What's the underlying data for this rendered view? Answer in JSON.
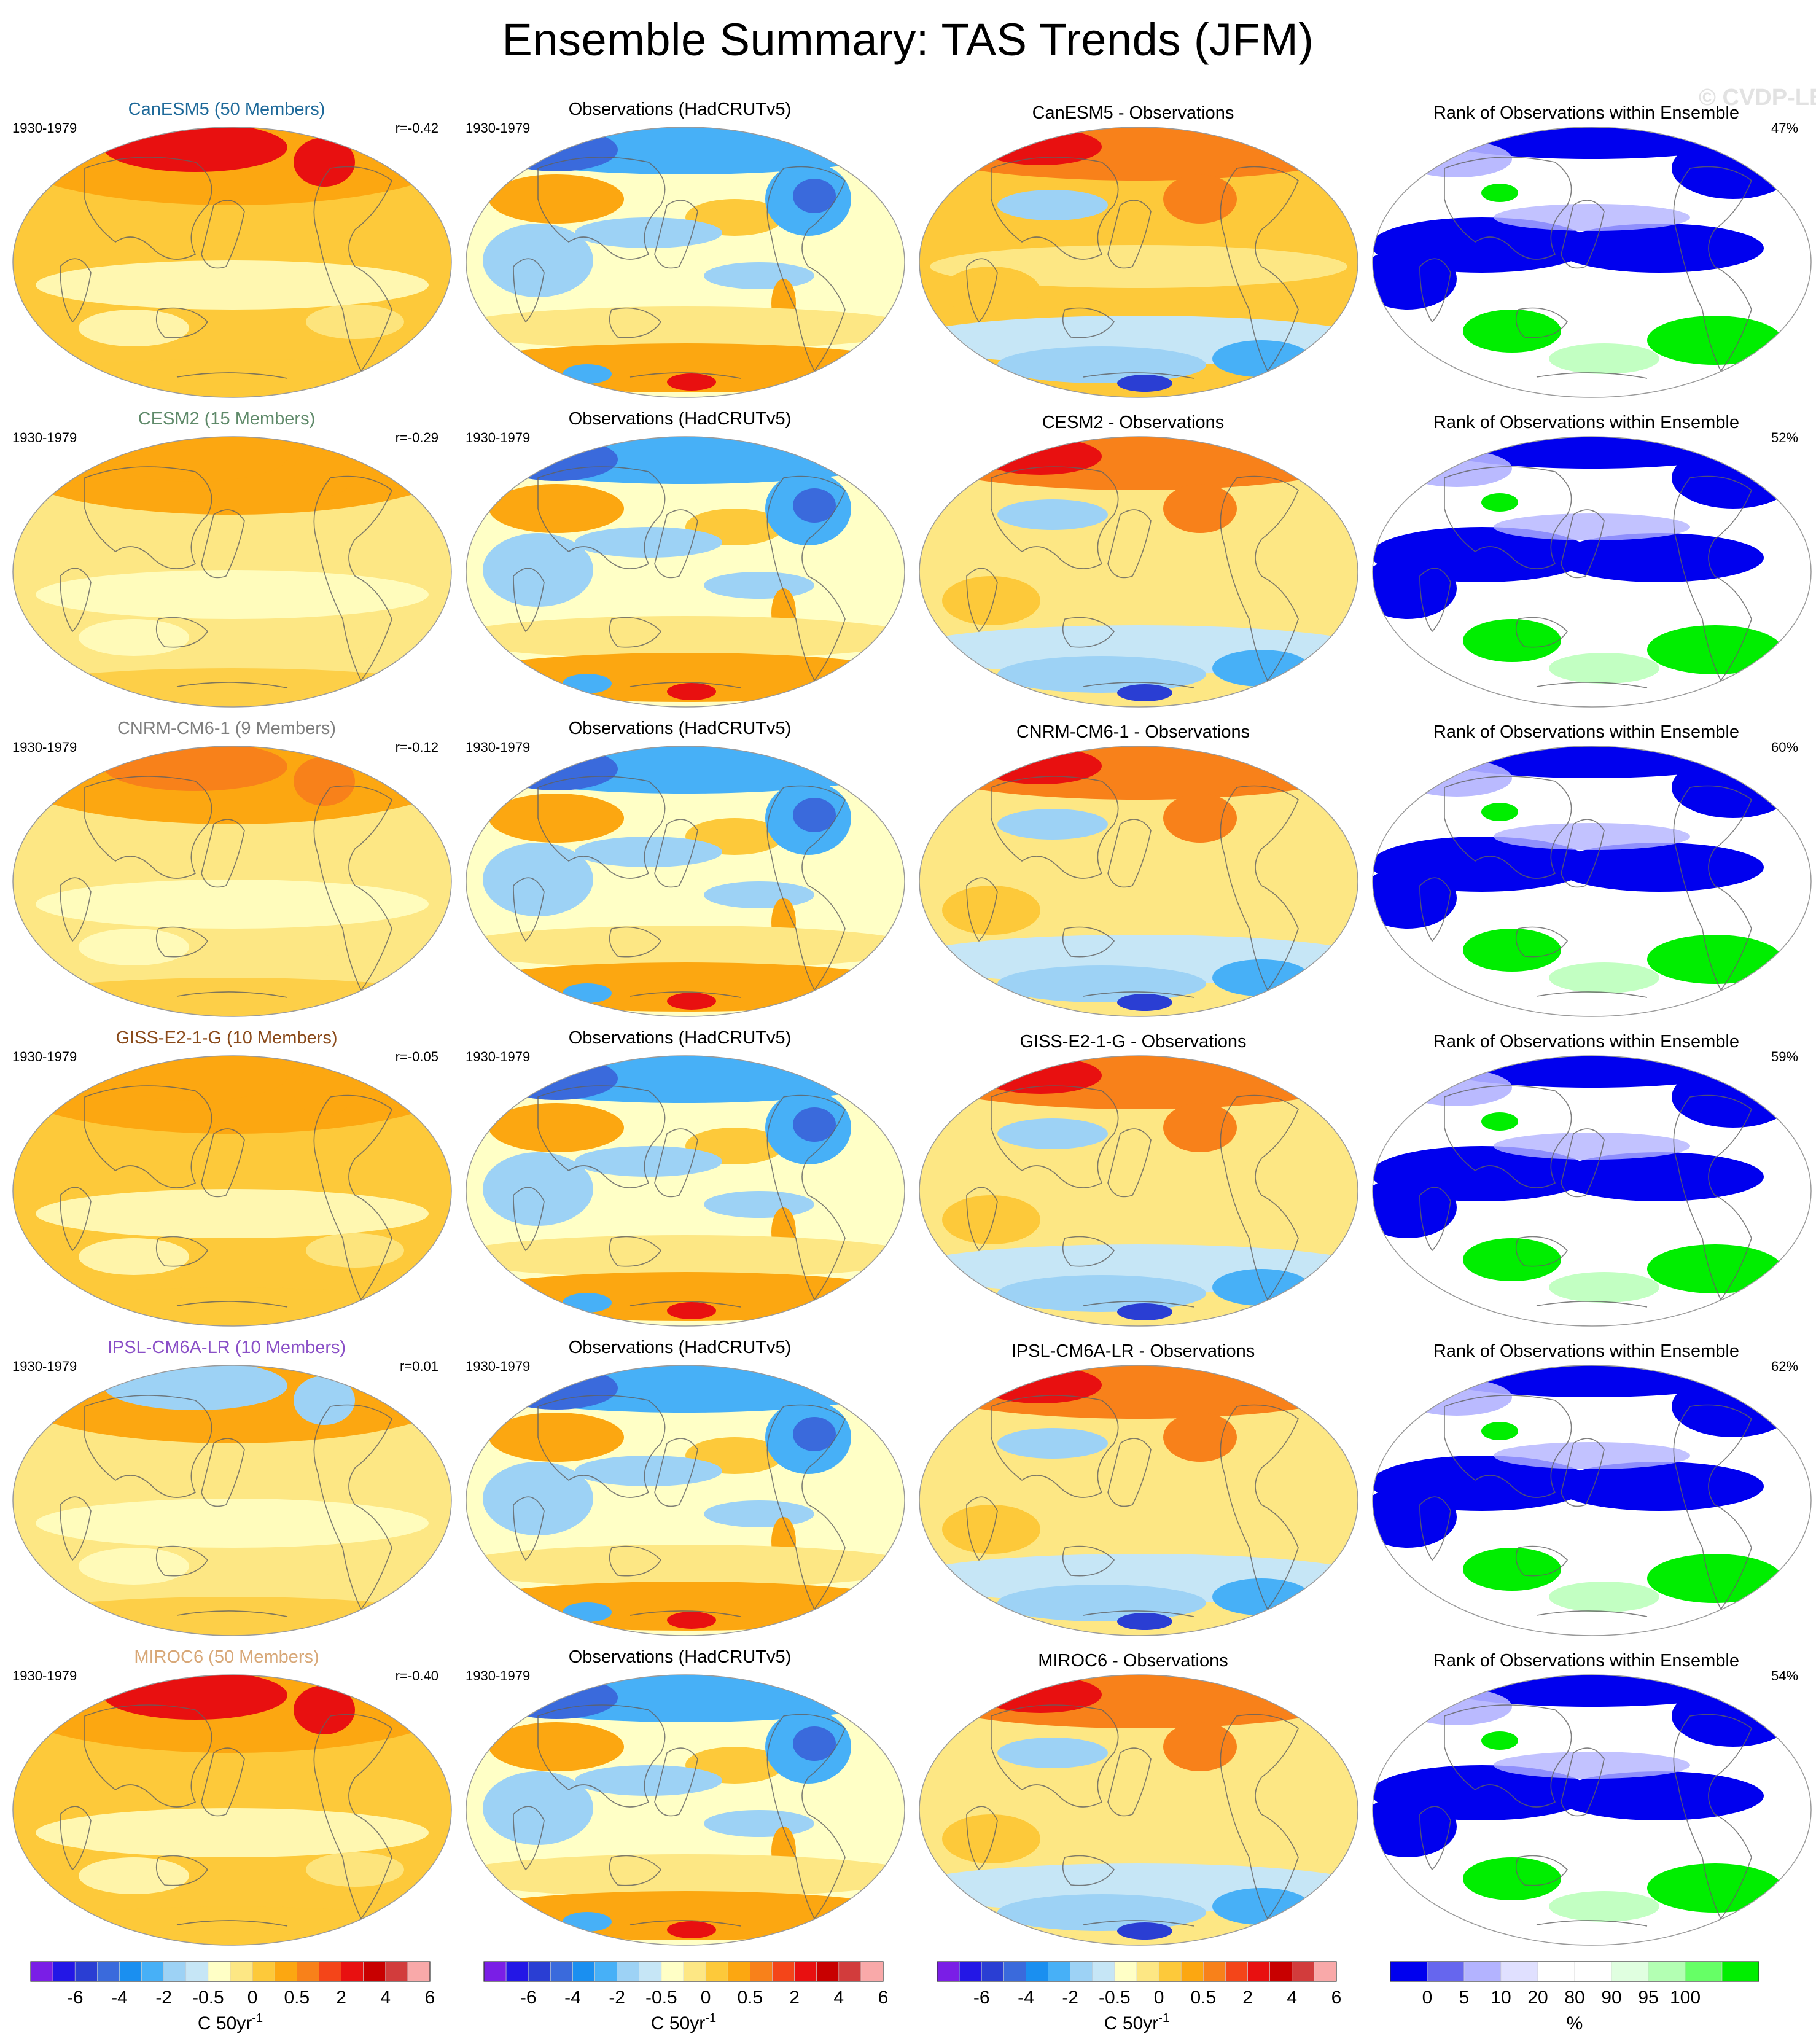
{
  "title": "Ensemble Summary: TAS Trends (JFM)",
  "copyright": "© CVDP-LE",
  "colors": {
    "diverging": [
      "#7a1ee6",
      "#2317e6",
      "#2a3ed3",
      "#3a6adc",
      "#1a8ff0",
      "#47b0f7",
      "#9dd2f5",
      "#c6e6f6",
      "#ffffc6",
      "#fde784",
      "#fdc93a",
      "#fca711",
      "#f8811a",
      "#f44519",
      "#e81010",
      "#c80000",
      "#d23c3c",
      "#f9a9a9"
    ],
    "rank": [
      "#0000ee",
      "#6666ee",
      "#b3b3ff",
      "#e0e0ff",
      "#ffffff",
      "#ffffff",
      "#e0ffe0",
      "#b3ffb3",
      "#66ff66",
      "#00ee00"
    ]
  },
  "rows": [
    {
      "model": {
        "title": "CanESM5 (50 Members)",
        "title_color": "#1f6a9a",
        "period": "1930-1979",
        "stat": "r=-0.42",
        "tint": "#fdc93a",
        "arctic": "#e81010"
      },
      "obs": {
        "title": "Observations (HadCRUTv5)",
        "period": "1930-1979"
      },
      "diff": {
        "title": "CanESM5 - Observations",
        "tint": "#fdc93a"
      },
      "rank": {
        "title": "Rank of Observations within Ensemble",
        "stat": "47%"
      }
    },
    {
      "model": {
        "title": "CESM2 (15 Members)",
        "title_color": "#5f8a6a",
        "period": "1930-1979",
        "stat": "r=-0.29",
        "tint": "#fde784",
        "arctic": "#fca711"
      },
      "obs": {
        "title": "Observations (HadCRUTv5)",
        "period": "1930-1979"
      },
      "diff": {
        "title": "CESM2 - Observations",
        "tint": "#fde784"
      },
      "rank": {
        "title": "Rank of Observations within Ensemble",
        "stat": "52%"
      }
    },
    {
      "model": {
        "title": "CNRM-CM6-1 (9 Members)",
        "title_color": "#7f7f7f",
        "period": "1930-1979",
        "stat": "r=-0.12",
        "tint": "#fde784",
        "arctic": "#f8811a"
      },
      "obs": {
        "title": "Observations (HadCRUTv5)",
        "period": "1930-1979"
      },
      "diff": {
        "title": "CNRM-CM6-1 - Observations",
        "tint": "#fde784"
      },
      "rank": {
        "title": "Rank of Observations within Ensemble",
        "stat": "60%"
      }
    },
    {
      "model": {
        "title": "GISS-E2-1-G (10 Members)",
        "title_color": "#8a4a1a",
        "period": "1930-1979",
        "stat": "r=-0.05",
        "tint": "#fdc93a",
        "arctic": "#fca711"
      },
      "obs": {
        "title": "Observations (HadCRUTv5)",
        "period": "1930-1979"
      },
      "diff": {
        "title": "GISS-E2-1-G - Observations",
        "tint": "#fde784"
      },
      "rank": {
        "title": "Rank of Observations within Ensemble",
        "stat": "59%"
      }
    },
    {
      "model": {
        "title": "IPSL-CM6A-LR (10 Members)",
        "title_color": "#8a4fc7",
        "period": "1930-1979",
        "stat": "r=0.01",
        "tint": "#fde784",
        "arctic": "#9dd2f5"
      },
      "obs": {
        "title": "Observations (HadCRUTv5)",
        "period": "1930-1979"
      },
      "diff": {
        "title": "IPSL-CM6A-LR - Observations",
        "tint": "#fde784"
      },
      "rank": {
        "title": "Rank of Observations within Ensemble",
        "stat": "62%"
      }
    },
    {
      "model": {
        "title": "MIROC6 (50 Members)",
        "title_color": "#d8a878",
        "period": "1930-1979",
        "stat": "r=-0.40",
        "tint": "#fdc93a",
        "arctic": "#e81010"
      },
      "obs": {
        "title": "Observations (HadCRUTv5)",
        "period": "1930-1979"
      },
      "diff": {
        "title": "MIROC6 - Observations",
        "tint": "#fde784"
      },
      "rank": {
        "title": "Rank of Observations within Ensemble",
        "stat": "54%"
      }
    }
  ],
  "colorbars": [
    {
      "ticks": [
        "-6",
        "-4",
        "-2",
        "-0.5",
        "0",
        "0.5",
        "2",
        "4",
        "6"
      ],
      "label": "C 50yr",
      "label_sup": "-1"
    },
    {
      "ticks": [
        "-6",
        "-4",
        "-2",
        "-0.5",
        "0",
        "0.5",
        "2",
        "4",
        "6"
      ],
      "label": "C 50yr",
      "label_sup": "-1"
    },
    {
      "ticks": [
        "-6",
        "-4",
        "-2",
        "-0.5",
        "0",
        "0.5",
        "2",
        "4",
        "6"
      ],
      "label": "C 50yr",
      "label_sup": "-1"
    },
    {
      "ticks": [
        "0",
        "5",
        "10",
        "20",
        "80",
        "90",
        "95",
        "100"
      ],
      "label": "%"
    }
  ]
}
